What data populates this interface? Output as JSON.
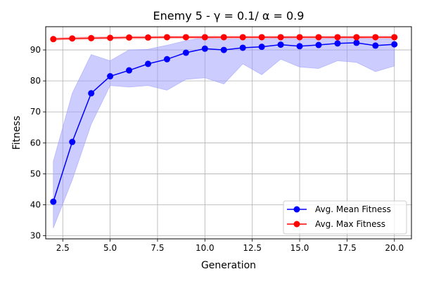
{
  "chart_data": {
    "type": "line",
    "title": "Enemy 5 - γ = 0.1/ α = 0.9",
    "xlabel": "Generation",
    "ylabel": "Fitness",
    "xlim": [
      1.6,
      20.9
    ],
    "ylim": [
      29,
      97.5
    ],
    "xticks": [
      2.5,
      5.0,
      7.5,
      10.0,
      12.5,
      15.0,
      17.5,
      20.0
    ],
    "xtick_labels": [
      "2.5",
      "5.0",
      "7.5",
      "10.0",
      "12.5",
      "15.0",
      "17.5",
      "20.0"
    ],
    "yticks": [
      30,
      40,
      50,
      60,
      70,
      80,
      90
    ],
    "ytick_labels": [
      "30",
      "40",
      "50",
      "60",
      "70",
      "80",
      "90"
    ],
    "grid": true,
    "legend_position": "bottom-right",
    "x": [
      2,
      3,
      4,
      5,
      6,
      7,
      8,
      9,
      10,
      11,
      12,
      13,
      14,
      15,
      16,
      17,
      18,
      19,
      20
    ],
    "series": [
      {
        "name": "Avg. Mean Fitness",
        "color": "#0000ff",
        "band_color": "#9999ff",
        "values": [
          41.0,
          60.3,
          76.0,
          81.5,
          83.4,
          85.5,
          87.0,
          89.1,
          90.4,
          90.0,
          90.7,
          91.0,
          91.7,
          91.2,
          91.6,
          92.1,
          92.3,
          91.4,
          91.8
        ],
        "upper": [
          54.0,
          76.0,
          88.5,
          86.5,
          90.0,
          90.2,
          91.5,
          93.0,
          94.0,
          93.5,
          93.5,
          93.5,
          94.0,
          93.5,
          93.6,
          94.0,
          94.0,
          93.5,
          93.6
        ],
        "lower": [
          32.5,
          48.0,
          66.0,
          78.5,
          78.0,
          78.5,
          77.0,
          80.5,
          81.0,
          79.0,
          85.5,
          82.0,
          87.0,
          84.5,
          84.0,
          86.5,
          86.0,
          83.0,
          84.8
        ]
      },
      {
        "name": "Avg. Max Fitness",
        "color": "#ff0000",
        "band_color": "#ff9999",
        "values": [
          93.5,
          93.7,
          93.8,
          93.9,
          94.0,
          94.0,
          94.1,
          94.1,
          94.1,
          94.1,
          94.1,
          94.1,
          94.1,
          94.1,
          94.1,
          94.1,
          94.1,
          94.1,
          94.1
        ],
        "upper": [
          93.9,
          94.1,
          94.2,
          94.3,
          94.4,
          94.4,
          94.5,
          94.5,
          94.5,
          94.5,
          94.5,
          94.5,
          94.5,
          94.5,
          94.5,
          94.5,
          94.5,
          94.5,
          94.5
        ],
        "lower": [
          93.1,
          93.3,
          93.4,
          93.5,
          93.6,
          93.6,
          93.7,
          93.7,
          93.7,
          93.7,
          93.7,
          93.7,
          93.7,
          93.7,
          93.7,
          93.7,
          93.7,
          93.7,
          93.7
        ]
      }
    ]
  }
}
